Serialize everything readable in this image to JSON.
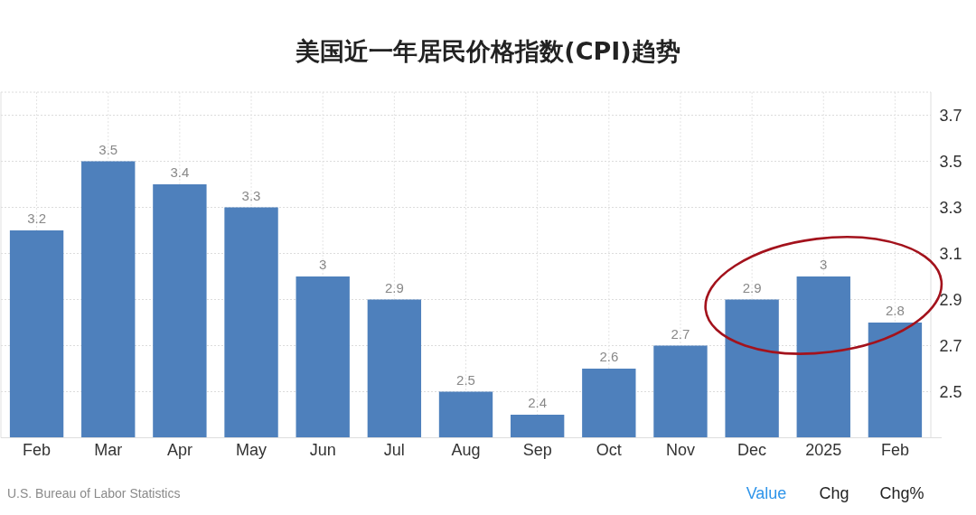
{
  "chart_data": {
    "type": "bar",
    "title": "美国近一年居民价格指数(CPI)趋势",
    "categories": [
      "Feb",
      "Mar",
      "Apr",
      "May",
      "Jun",
      "Jul",
      "Aug",
      "Sep",
      "Oct",
      "Nov",
      "Dec",
      "2025",
      "Feb"
    ],
    "values": [
      3.2,
      3.5,
      3.4,
      3.3,
      3,
      2.9,
      2.5,
      2.4,
      2.6,
      2.7,
      2.9,
      3,
      2.8
    ],
    "color": "#4e80bc",
    "ylim": [
      2.3,
      3.8
    ],
    "yticks": [
      2.5,
      2.7,
      2.9,
      3.1,
      3.3,
      3.5,
      3.7
    ],
    "grid": true,
    "data_labels": true,
    "annotations": [
      "U.S. Bureau of Labor Statistics",
      "Value",
      "Chg",
      "Chg%"
    ]
  }
}
